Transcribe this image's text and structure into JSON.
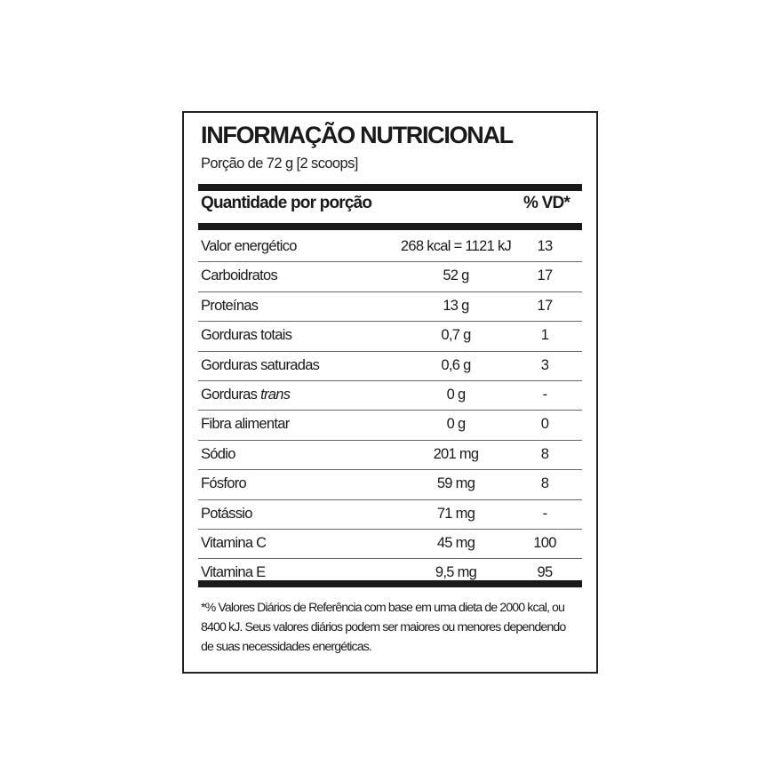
{
  "title": "INFORMAÇÃO NUTRICIONAL",
  "serving": "Porção de 72 g  [2 scoops]",
  "header": {
    "quantity": "Quantidade por porção",
    "vd": "% VD*"
  },
  "rows": [
    {
      "name": "Valor energético",
      "amount": "268 kcal = 1121 kJ",
      "vd": "13"
    },
    {
      "name": "Carboidratos",
      "amount": "52 g",
      "vd": "17"
    },
    {
      "name": "Proteínas",
      "amount": "13 g",
      "vd": "17"
    },
    {
      "name": "Gorduras totais",
      "amount": "0,7 g",
      "vd": "1"
    },
    {
      "name": "Gorduras saturadas",
      "amount": "0,6 g",
      "vd": "3"
    },
    {
      "name": "Gorduras",
      "name_italic": "trans",
      "amount": "0 g",
      "vd": "-"
    },
    {
      "name": "Fibra alimentar",
      "amount": "0 g",
      "vd": "0"
    },
    {
      "name": "Sódio",
      "amount": "201 mg",
      "vd": "8"
    },
    {
      "name": "Fósforo",
      "amount": "59 mg",
      "vd": "8"
    },
    {
      "name": "Potássio",
      "amount": "71 mg",
      "vd": "-"
    },
    {
      "name": "Vitamina C",
      "amount": "45 mg",
      "vd": "100"
    },
    {
      "name": "Vitamina E",
      "amount": "9,5 mg",
      "vd": "95"
    }
  ],
  "footnote": "*% Valores Diários de Referência com base em uma dieta de 2000 kcal, ou 8400 kJ. Seus valores diários podem ser maiores ou menores dependendo de suas necessidades energéticas."
}
